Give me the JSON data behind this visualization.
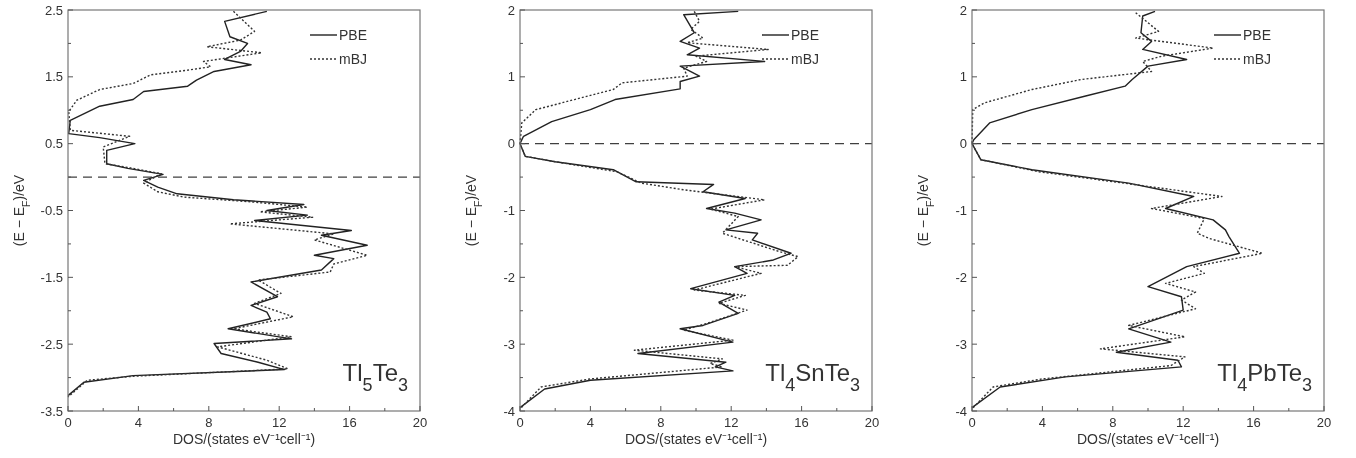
{
  "chart_data": [
    {
      "type": "line",
      "xlabel": "DOS/(states eV⁻¹cell⁻¹)",
      "ylabel": "(E − E$_{F}$)/eV",
      "annotations": [
        "Tl$_{5}$Te$_{3}$"
      ],
      "legend": "top right",
      "grid": false,
      "xlim": [
        0,
        20
      ],
      "ylim": [
        -3.5,
        2.5
      ],
      "xticks": [
        0,
        {
          "value": 2,
          "label": null
        },
        4,
        {
          "value": 6,
          "label": null
        },
        8,
        {
          "value": 10,
          "label": null
        },
        12,
        {
          "value": 14,
          "label": null
        },
        16,
        {
          "value": 18,
          "label": null
        },
        20
      ],
      "yticks": [
        -3.5,
        {
          "value": -3,
          "label": null
        },
        -2.5,
        {
          "value": -2,
          "label": null
        },
        -1.5,
        {
          "value": -1,
          "label": null
        },
        -0.5,
        {
          "value": 0,
          "label": null
        },
        0.5,
        {
          "value": 1,
          "label": null
        },
        1.5,
        {
          "value": 2,
          "label": null
        },
        2.5
      ],
      "ref_lines": [
        {
          "axis": "y",
          "value": 0,
          "line_style": "dashed",
          "color": "#404040"
        }
      ],
      "series": [
        {
          "name": "PBE",
          "color": "#222222",
          "line_style": "solid",
          "x": [
            11.3,
            8.9,
            9.2,
            10.2,
            9.8,
            8.9,
            10.4,
            8.3,
            7.3,
            6.8,
            4.3,
            3.7,
            1.8,
            0.13,
            0.04,
            1.8,
            3.8,
            2.2,
            2.2,
            3.4,
            5.4,
            4.3,
            5.1,
            6.2,
            9.4,
            13.4,
            11.3,
            13.6,
            10.6,
            16.1,
            14.4,
            17.0,
            14.0,
            15.1,
            14.4,
            10.4,
            11.9,
            10.4,
            11.3,
            11.5,
            9.1,
            12.7,
            8.3,
            8.7,
            10.8,
            12.3,
            3.7,
            0.9,
            0
          ],
          "values": [
            2.48,
            2.33,
            2.1,
            2.0,
            1.88,
            1.76,
            1.68,
            1.58,
            1.45,
            1.36,
            1.28,
            1.16,
            1.06,
            0.85,
            0.65,
            0.59,
            0.5,
            0.4,
            0.2,
            0.13,
            0.04,
            -0.05,
            -0.15,
            -0.25,
            -0.34,
            -0.41,
            -0.5,
            -0.57,
            -0.65,
            -0.8,
            -0.87,
            -1.02,
            -1.17,
            -1.22,
            -1.39,
            -1.57,
            -1.79,
            -1.92,
            -2.02,
            -2.12,
            -2.27,
            -2.42,
            -2.49,
            -2.64,
            -2.77,
            -2.88,
            -2.97,
            -3.07,
            -3.27
          ]
        },
        {
          "name": "mBJ",
          "color": "#333333",
          "line_style": "dotted",
          "x": [
            9.4,
            10.6,
            9.8,
            7.9,
            11.0,
            7.7,
            8.1,
            6.8,
            4.7,
            3.7,
            1.8,
            0.5,
            0.04,
            0.13,
            3.5,
            2.0,
            2.1,
            3.7,
            5.3,
            4.3,
            5.1,
            6.6,
            10.4,
            13.6,
            10.9,
            13.9,
            9.2,
            15.1,
            14.0,
            17.0,
            15.1,
            14.9,
            10.8,
            12.1,
            10.6,
            12.8,
            9.4,
            12.7,
            8.5,
            11.3,
            12.5,
            3.7,
            1.1,
            0
          ],
          "values": [
            2.48,
            2.18,
            2.05,
            1.95,
            1.86,
            1.73,
            1.65,
            1.6,
            1.53,
            1.4,
            1.31,
            1.15,
            0.98,
            0.7,
            0.61,
            0.45,
            0.2,
            0.13,
            0.05,
            -0.09,
            -0.22,
            -0.3,
            -0.37,
            -0.45,
            -0.52,
            -0.6,
            -0.7,
            -0.85,
            -0.94,
            -1.17,
            -1.3,
            -1.42,
            -1.54,
            -1.74,
            -1.89,
            -2.09,
            -2.27,
            -2.39,
            -2.54,
            -2.74,
            -2.87,
            -2.98,
            -3.04,
            -3.29
          ]
        }
      ]
    },
    {
      "type": "line",
      "xlabel": "DOS/(states eV⁻¹cell⁻¹)",
      "ylabel": "(E − E$_{F}$)/eV",
      "annotations": [
        "Tl$_{4}$SnTe$_{3}$"
      ],
      "legend": "top right",
      "grid": false,
      "xlim": [
        0,
        20
      ],
      "ylim": [
        -4,
        2
      ],
      "xticks": [
        0,
        {
          "value": 2,
          "label": null
        },
        4,
        {
          "value": 6,
          "label": null
        },
        8,
        {
          "value": 10,
          "label": null
        },
        12,
        {
          "value": 14,
          "label": null
        },
        16,
        {
          "value": 18,
          "label": null
        },
        20
      ],
      "yticks": [
        -4,
        {
          "value": -3.5,
          "label": null
        },
        -3,
        {
          "value": -2.5,
          "label": null
        },
        -2,
        {
          "value": -1.5,
          "label": null
        },
        -1,
        {
          "value": -0.5,
          "label": null
        },
        0,
        {
          "value": 0.5,
          "label": null
        },
        1,
        {
          "value": 1.5,
          "label": null
        },
        2
      ],
      "ref_lines": [
        {
          "axis": "y",
          "value": 0,
          "line_style": "dashed",
          "color": "#404040"
        }
      ],
      "series": [
        {
          "name": "PBE",
          "color": "#222222",
          "line_style": "solid",
          "x": [
            12.4,
            9.3,
            9.9,
            9.1,
            10.2,
            9.5,
            13.9,
            9.1,
            10.2,
            9.1,
            9.1,
            5.4,
            4.0,
            1.8,
            0.2,
            0,
            0.3,
            2.0,
            5.3,
            6.6,
            11.0,
            10.4,
            12.8,
            10.6,
            12.2,
            13.7,
            11.7,
            13.5,
            13.2,
            15.4,
            14.4,
            12.2,
            12.9,
            9.7,
            12.2,
            11.3,
            12.4,
            10.4,
            9.1,
            12.1,
            6.7,
            11.7,
            11.1,
            12.1,
            4.0,
            1.4,
            0
          ],
          "values": [
            1.98,
            1.93,
            1.66,
            1.53,
            1.43,
            1.33,
            1.23,
            1.16,
            1.01,
            0.93,
            0.82,
            0.66,
            0.51,
            0.33,
            0.11,
            0,
            -0.19,
            -0.27,
            -0.39,
            -0.57,
            -0.61,
            -0.72,
            -0.82,
            -0.97,
            -1.04,
            -1.14,
            -1.29,
            -1.34,
            -1.44,
            -1.64,
            -1.74,
            -1.84,
            -1.94,
            -2.17,
            -2.27,
            -2.37,
            -2.54,
            -2.72,
            -2.77,
            -2.97,
            -3.14,
            -3.27,
            -3.34,
            -3.4,
            -3.54,
            -3.67,
            -3.95
          ]
        },
        {
          "name": "mBJ",
          "color": "#333333",
          "line_style": "dotted",
          "x": [
            9.9,
            10.2,
            9.7,
            10.4,
            9.5,
            14.1,
            10.0,
            10.6,
            9.3,
            9.5,
            5.8,
            5.3,
            3.1,
            0.9,
            0.1,
            0,
            0.3,
            2.0,
            5.5,
            6.9,
            9.3,
            13.9,
            10.8,
            12.4,
            11.5,
            14.8,
            15.8,
            15.2,
            12.2,
            13.7,
            9.9,
            12.8,
            11.3,
            12.9,
            10.6,
            9.3,
            12.1,
            6.5,
            11.5,
            10.8,
            11.5,
            4.0,
            1.2,
            0
          ],
          "values": [
            1.98,
            1.83,
            1.71,
            1.58,
            1.51,
            1.41,
            1.31,
            1.23,
            1.13,
            1.01,
            0.91,
            0.81,
            0.66,
            0.51,
            0.31,
            0,
            -0.19,
            -0.27,
            -0.42,
            -0.59,
            -0.69,
            -0.84,
            -0.98,
            -1.09,
            -1.34,
            -1.62,
            -1.69,
            -1.82,
            -1.84,
            -1.94,
            -2.19,
            -2.27,
            -2.39,
            -2.49,
            -2.69,
            -2.79,
            -2.94,
            -3.09,
            -3.22,
            -3.29,
            -3.34,
            -3.52,
            -3.64,
            -3.97
          ]
        }
      ]
    },
    {
      "type": "line",
      "xlabel": "DOS/(states eV⁻¹cell⁻¹)",
      "ylabel": "(E − E$_{F}$)/eV",
      "annotations": [
        "Tl$_{4}$PbTe$_{3}$"
      ],
      "legend": "top right",
      "grid": false,
      "xlim": [
        0,
        20
      ],
      "ylim": [
        -4,
        2
      ],
      "xticks": [
        0,
        {
          "value": 2,
          "label": null
        },
        4,
        {
          "value": 6,
          "label": null
        },
        8,
        {
          "value": 10,
          "label": null
        },
        12,
        {
          "value": 14,
          "label": null
        },
        16,
        {
          "value": 18,
          "label": null
        },
        20
      ],
      "yticks": [
        -4,
        {
          "value": -3.5,
          "label": null
        },
        -3,
        {
          "value": -2.5,
          "label": null
        },
        -2,
        {
          "value": -1.5,
          "label": null
        },
        -1,
        {
          "value": -0.5,
          "label": null
        },
        0,
        {
          "value": 0.5,
          "label": null
        },
        1,
        {
          "value": 1.5,
          "label": null
        },
        2
      ],
      "ref_lines": [
        {
          "axis": "y",
          "value": 0,
          "line_style": "dashed",
          "color": "#404040"
        }
      ],
      "series": [
        {
          "name": "PBE",
          "color": "#222222",
          "line_style": "solid",
          "x": [
            10.4,
            9.7,
            9.6,
            10.2,
            9.7,
            12.2,
            10.0,
            9.1,
            8.7,
            6.4,
            3.4,
            1.0,
            0.1,
            0,
            0.5,
            3.4,
            8.9,
            12.6,
            11.0,
            13.7,
            14.4,
            14.6,
            15.2,
            12.2,
            10.0,
            11.9,
            12.0,
            8.9,
            11.3,
            8.2,
            11.7,
            11.9,
            5.3,
            1.6,
            0
          ],
          "values": [
            1.98,
            1.91,
            1.66,
            1.53,
            1.41,
            1.26,
            1.16,
            0.96,
            0.86,
            0.71,
            0.51,
            0.31,
            0.06,
            0,
            -0.24,
            -0.39,
            -0.59,
            -0.79,
            -0.97,
            -1.14,
            -1.29,
            -1.39,
            -1.64,
            -1.84,
            -2.14,
            -2.29,
            -2.49,
            -2.77,
            -2.97,
            -3.12,
            -3.24,
            -3.34,
            -3.49,
            -3.64,
            -3.95
          ]
        },
        {
          "name": "mBJ",
          "color": "#333333",
          "line_style": "dotted",
          "x": [
            9.3,
            10.6,
            9.3,
            13.7,
            10.8,
            9.7,
            10.2,
            6.2,
            3.4,
            0.7,
            0.04,
            0,
            0.5,
            3.8,
            8.9,
            14.2,
            10.2,
            13.2,
            12.8,
            13.5,
            16.5,
            12.6,
            13.2,
            11.0,
            12.7,
            11.9,
            12.7,
            8.9,
            12.1,
            7.3,
            12.1,
            11.3,
            4.0,
            1.2,
            0
          ],
          "values": [
            1.96,
            1.68,
            1.58,
            1.43,
            1.31,
            1.23,
            1.08,
            0.96,
            0.81,
            0.61,
            0.51,
            0,
            -0.24,
            -0.42,
            -0.6,
            -0.79,
            -0.97,
            -1.12,
            -1.34,
            -1.42,
            -1.64,
            -1.84,
            -1.94,
            -2.09,
            -2.22,
            -2.34,
            -2.47,
            -2.72,
            -2.89,
            -3.07,
            -3.19,
            -3.32,
            -3.52,
            -3.64,
            -3.97
          ]
        }
      ]
    }
  ]
}
